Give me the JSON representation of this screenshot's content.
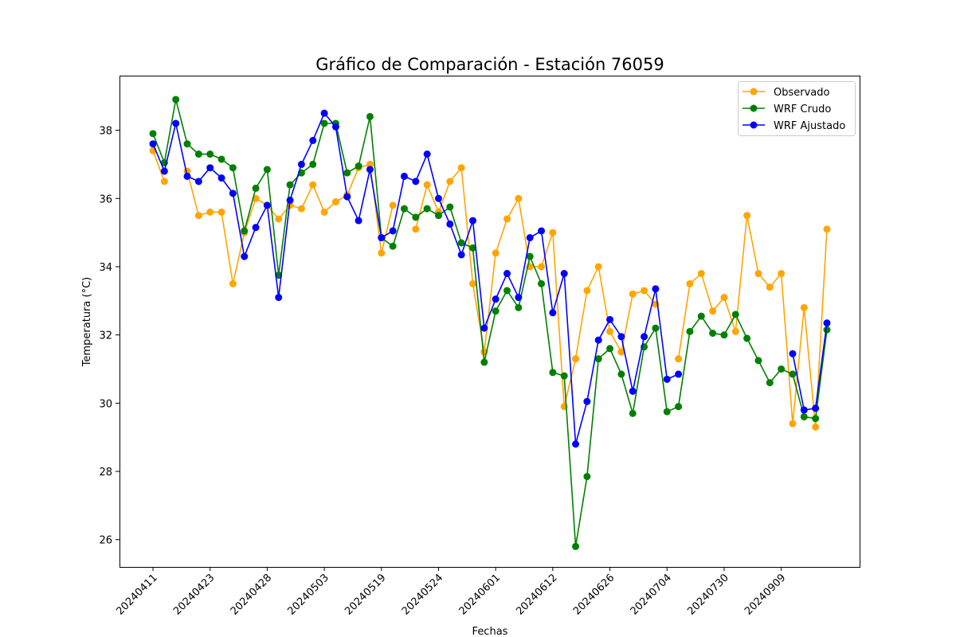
{
  "chart_data": {
    "type": "line",
    "title": "Gráfico de Comparación - Estación 76059",
    "xlabel": "Fechas",
    "ylabel": "Temperatura (°C)",
    "ylim": [
      25.2,
      39.6
    ],
    "yticks": [
      26,
      28,
      30,
      32,
      34,
      36,
      38
    ],
    "grid": false,
    "legend_position": "top-right",
    "xtick_labels": [
      "20240411",
      "20240423",
      "20240428",
      "20240503",
      "20240519",
      "20240524",
      "20240601",
      "20240612",
      "20240626",
      "20240704",
      "20240730",
      "20240909"
    ],
    "xtick_every": 5,
    "num_points": 60,
    "series": [
      {
        "name": "Observado",
        "color": "#ffa500",
        "values": [
          37.4,
          36.5,
          null,
          36.8,
          35.5,
          35.6,
          35.6,
          33.5,
          35.0,
          36.0,
          35.8,
          35.4,
          35.8,
          35.7,
          36.4,
          35.6,
          35.9,
          36.1,
          36.9,
          37.0,
          34.4,
          35.8,
          null,
          35.1,
          36.4,
          35.6,
          36.5,
          36.9,
          33.5,
          31.5,
          34.4,
          35.4,
          36.0,
          34.0,
          34.0,
          35.0,
          29.9,
          31.3,
          33.3,
          34.0,
          32.1,
          31.5,
          33.2,
          33.3,
          32.9,
          null,
          31.3,
          33.5,
          33.8,
          32.7,
          33.1,
          32.1,
          35.5,
          33.8,
          33.4,
          33.8,
          29.4,
          32.8,
          29.3,
          35.1
        ]
      },
      {
        "name": "WRF Crudo",
        "color": "#008000",
        "values": [
          37.9,
          37.05,
          38.9,
          37.6,
          37.3,
          37.3,
          37.15,
          36.9,
          35.05,
          36.3,
          36.85,
          33.75,
          36.4,
          36.75,
          37.0,
          38.2,
          38.2,
          36.75,
          36.95,
          38.4,
          34.85,
          34.6,
          35.7,
          35.45,
          35.7,
          35.5,
          35.75,
          34.7,
          34.55,
          31.2,
          32.7,
          33.3,
          32.8,
          34.3,
          33.5,
          30.9,
          30.8,
          25.8,
          27.85,
          31.3,
          31.6,
          30.85,
          29.7,
          31.65,
          32.2,
          29.75,
          29.9,
          32.1,
          32.55,
          32.05,
          32.0,
          32.6,
          31.9,
          31.25,
          30.6,
          31.0,
          30.85,
          29.6,
          29.55,
          32.15
        ]
      },
      {
        "name": "WRF Ajustado",
        "color": "#0000ff",
        "values": [
          37.6,
          36.8,
          38.2,
          36.65,
          36.5,
          36.9,
          36.6,
          36.15,
          34.3,
          35.15,
          35.8,
          33.1,
          35.95,
          37.0,
          37.7,
          38.5,
          38.1,
          36.05,
          35.35,
          36.85,
          34.85,
          35.05,
          36.65,
          36.5,
          37.3,
          36.0,
          35.25,
          34.35,
          35.35,
          32.2,
          33.05,
          33.8,
          33.1,
          34.85,
          35.05,
          32.65,
          33.8,
          28.8,
          30.05,
          31.85,
          32.45,
          31.95,
          30.35,
          31.95,
          33.35,
          30.7,
          30.85,
          null,
          null,
          null,
          null,
          null,
          null,
          null,
          null,
          null,
          31.45,
          29.8,
          29.85,
          32.35
        ]
      }
    ]
  }
}
